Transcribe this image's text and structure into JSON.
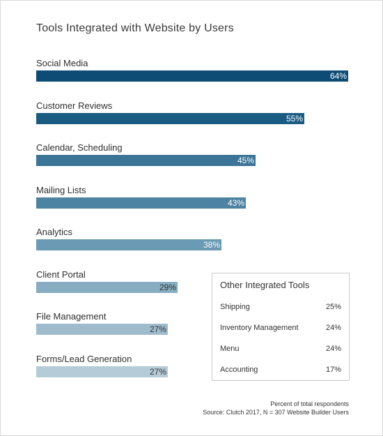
{
  "chart_data": {
    "type": "bar",
    "orientation": "horizontal",
    "title": "Tools Integrated with Website by Users",
    "categories": [
      "Social Media",
      "Customer Reviews",
      "Calendar, Scheduling",
      "Mailing Lists",
      "Analytics",
      "Client Portal",
      "File Management",
      "Forms/Lead Generation"
    ],
    "values": [
      64,
      55,
      45,
      43,
      38,
      29,
      27,
      27
    ],
    "value_labels": [
      "64%",
      "55%",
      "45%",
      "43%",
      "38%",
      "29%",
      "27%",
      "27%"
    ],
    "unit": "%",
    "xlim": [
      0,
      64
    ],
    "grid": false,
    "legend": "none",
    "bar_colors": [
      "#0f4c75",
      "#1a5b82",
      "#3a7496",
      "#4c82a2",
      "#6b9ab5",
      "#88acc2",
      "#9fbccd",
      "#b5cbd8"
    ],
    "value_label_colors": [
      "#ffffff",
      "#ffffff",
      "#ffffff",
      "#ffffff",
      "#ffffff",
      "#333333",
      "#333333",
      "#333333"
    ]
  },
  "other_tools": {
    "title": "Other Integrated Tools",
    "items": [
      {
        "label": "Shipping",
        "value": "25%"
      },
      {
        "label": "Inventory Management",
        "value": "24%"
      },
      {
        "label": "Menu",
        "value": "24%"
      },
      {
        "label": "Accounting",
        "value": "17%"
      }
    ]
  },
  "footnote": {
    "line1": "Percent of total respondents",
    "line2": "Source: Clutch 2017, N = 307 Website Builder Users"
  }
}
